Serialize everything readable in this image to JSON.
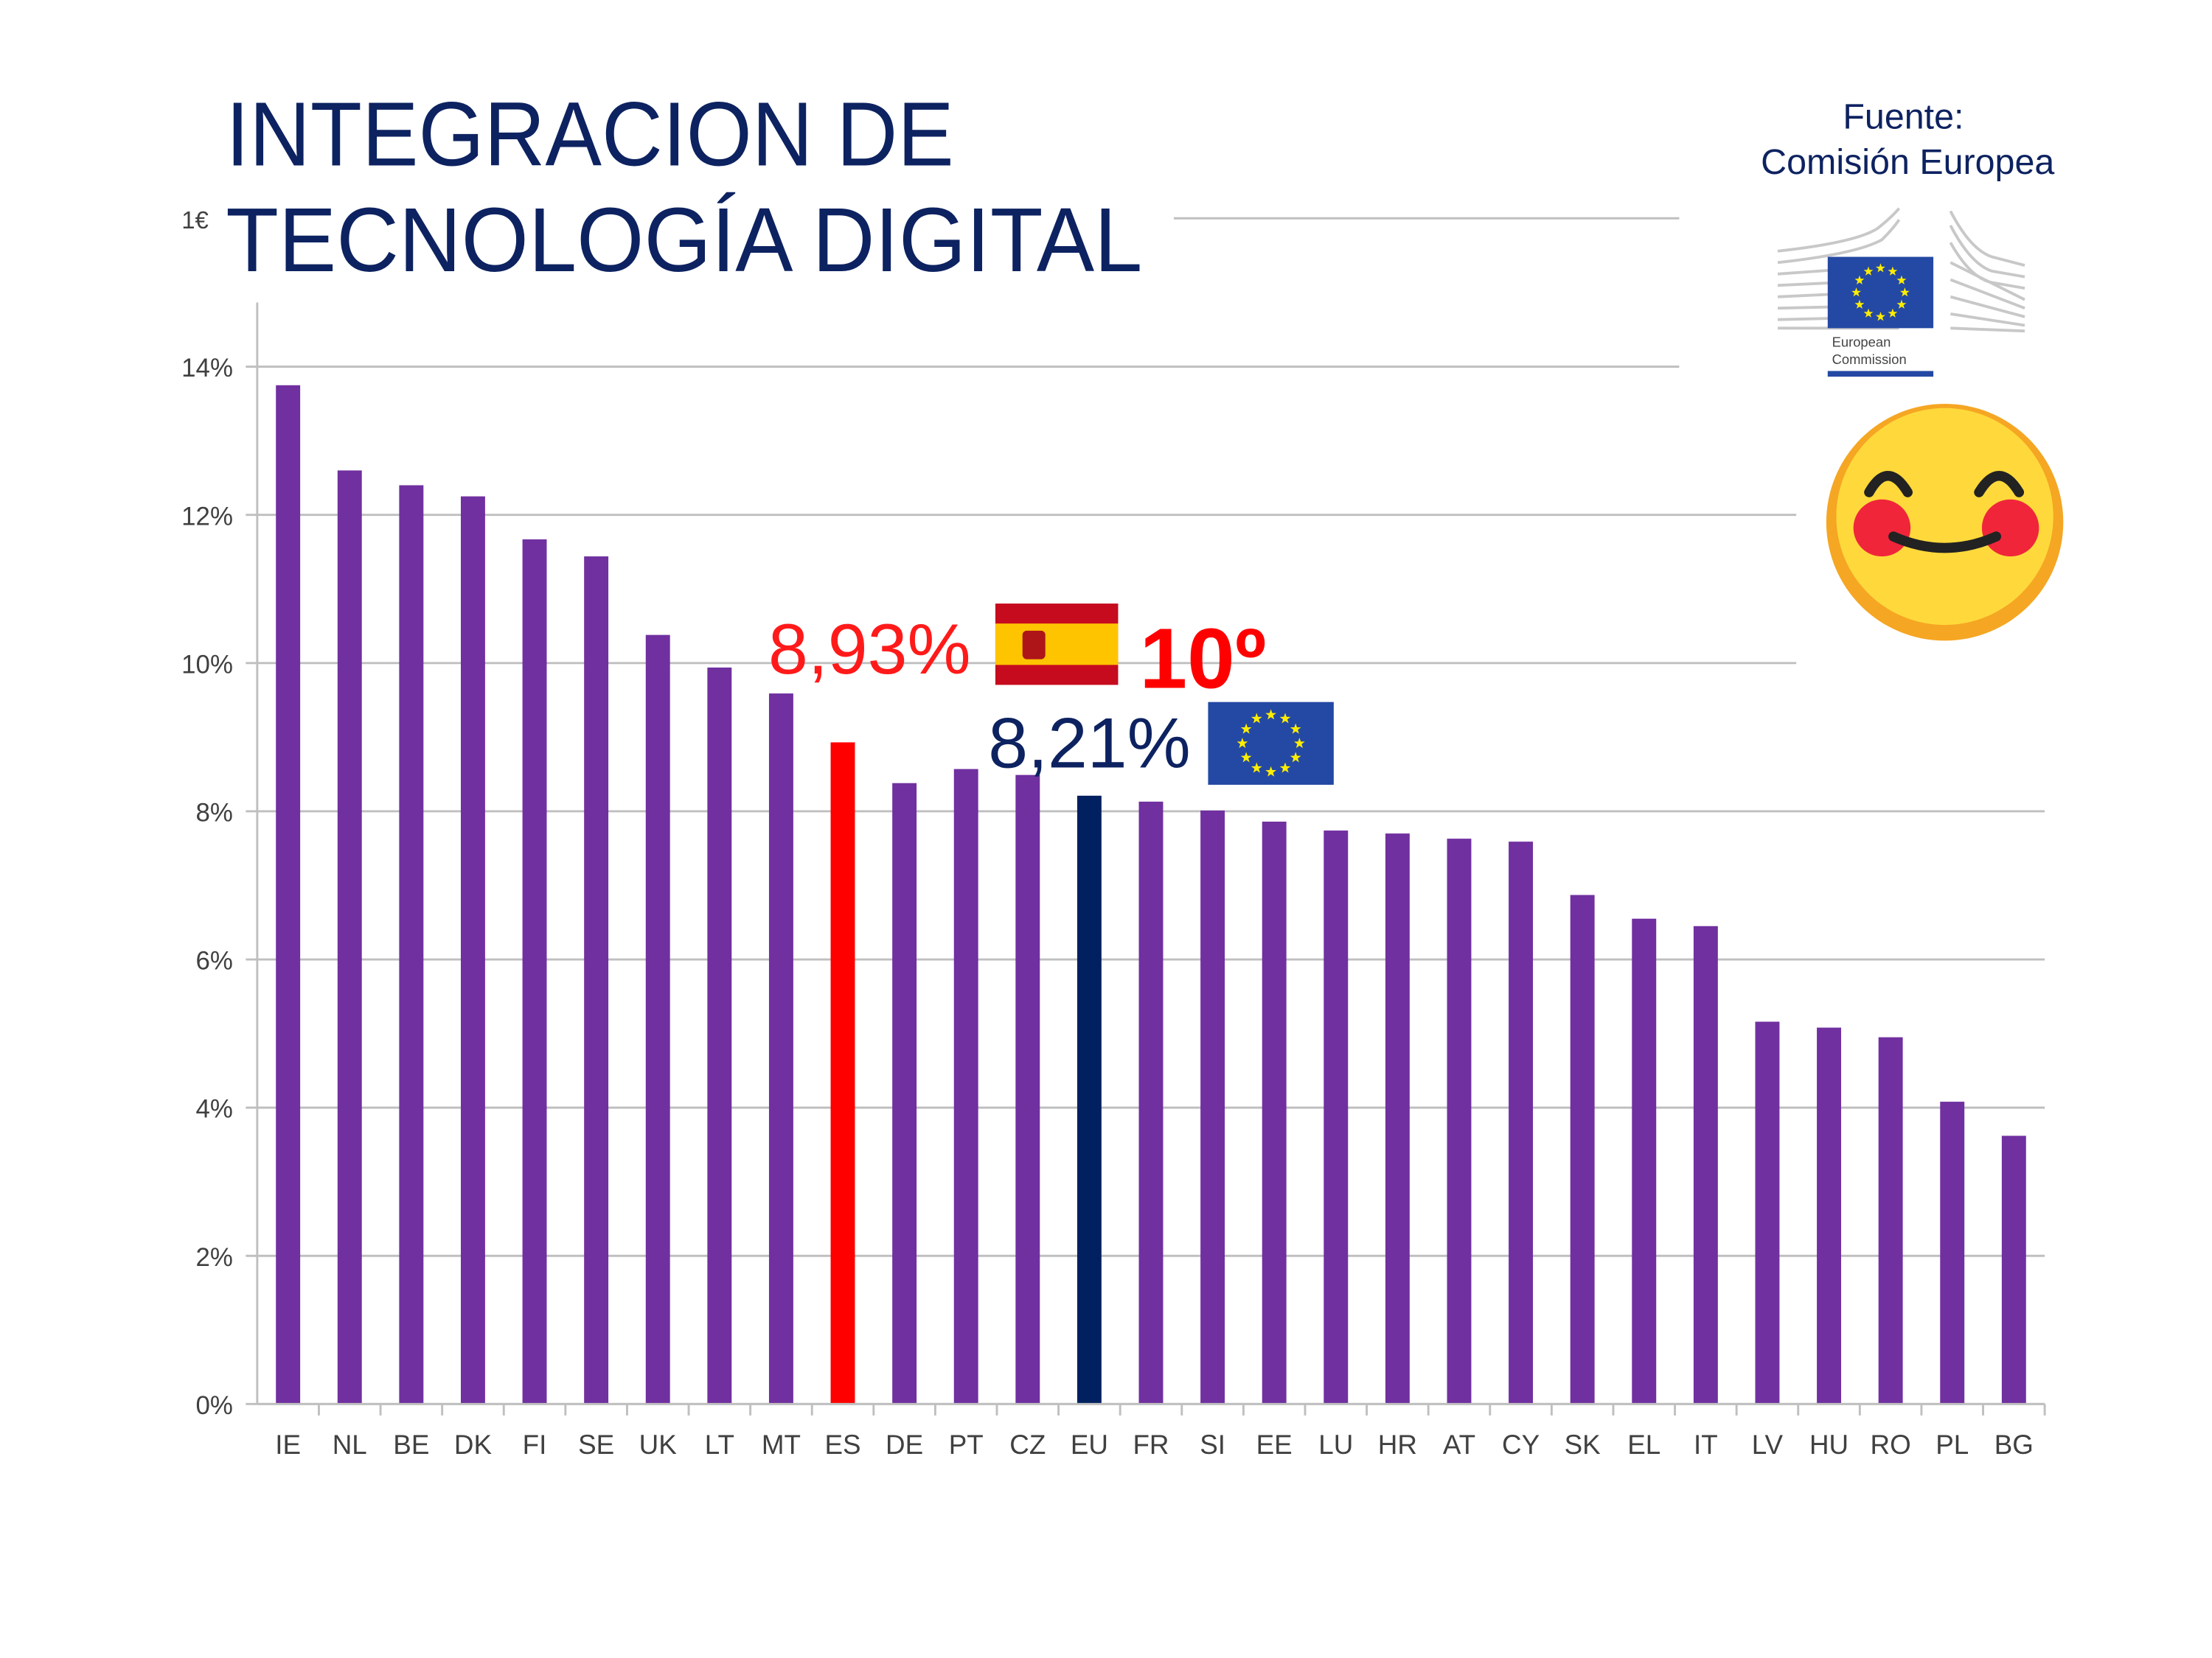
{
  "title_line1": "INTEGRACION DE",
  "title_line2": "TECNOLOGÍA DIGITAL",
  "hidden_tick_fragment": "1€",
  "source": {
    "line1": "Fuente:",
    "line2": "Comisión Europea"
  },
  "logo": {
    "line1": "European",
    "line2": "Commission"
  },
  "annotations": {
    "spain_value": "8,93%",
    "spain_rank": "10º",
    "eu_value": "8,21%"
  },
  "icons": [
    "spain-flag-icon",
    "eu-flag-icon",
    "smiling-face-icon",
    "european-commission-logo"
  ],
  "colors": {
    "title": "#0d2260",
    "bar": "#7030a0",
    "spain_bar": "#ff0000",
    "eu_bar": "#002060",
    "spain_label": "#ff1a1a",
    "eu_label": "#0d2260"
  },
  "chart_data": {
    "type": "bar",
    "title": "INTEGRACION DE TECNOLOGÍA DIGITAL",
    "xlabel": "",
    "ylabel": "",
    "ylim": [
      0,
      14
    ],
    "yticks": [
      "0%",
      "2%",
      "4%",
      "6%",
      "8%",
      "10%",
      "12%",
      "14%"
    ],
    "ytick_values": [
      0,
      2,
      4,
      6,
      8,
      10,
      12,
      14
    ],
    "grid": true,
    "categories": [
      "IE",
      "NL",
      "BE",
      "DK",
      "FI",
      "SE",
      "UK",
      "LT",
      "MT",
      "ES",
      "DE",
      "PT",
      "CZ",
      "EU",
      "FR",
      "SI",
      "EE",
      "LU",
      "HR",
      "AT",
      "CY",
      "SK",
      "EL",
      "IT",
      "LV",
      "HU",
      "RO",
      "PL",
      "BG"
    ],
    "values": [
      13.75,
      12.6,
      12.4,
      12.25,
      11.67,
      11.44,
      10.38,
      9.94,
      9.59,
      8.93,
      8.38,
      8.57,
      8.49,
      8.21,
      8.13,
      8.01,
      7.86,
      7.74,
      7.7,
      7.63,
      7.59,
      6.87,
      6.55,
      6.45,
      5.16,
      5.08,
      4.95,
      4.08,
      3.62
    ],
    "highlight": {
      "ES": "#ff0000",
      "EU": "#002060"
    }
  }
}
